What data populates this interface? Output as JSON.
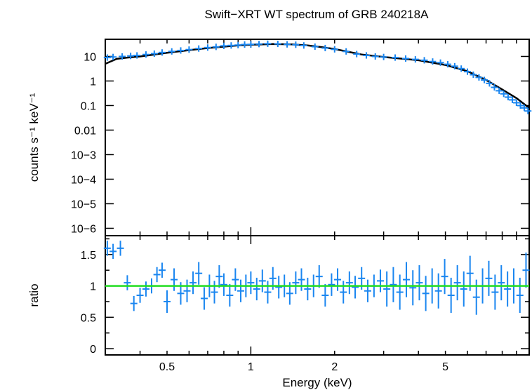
{
  "chart_data": [
    {
      "type": "scatter",
      "panel": "spectrum",
      "title": "Swift−XRT WT spectrum of GRB 240218A",
      "ylabel": "counts s⁻¹ keV⁻¹",
      "xscale": "log",
      "yscale": "log",
      "xlim": [
        0.3,
        10
      ],
      "ylim": [
        5e-07,
        50
      ],
      "x_ticks": [
        0.5,
        1,
        2,
        5
      ],
      "y_ticks": [
        {
          "value": 10,
          "label": "10"
        },
        {
          "value": 1,
          "label": "1"
        },
        {
          "value": 0.1,
          "label": "0.1"
        },
        {
          "value": 0.01,
          "label": "0.01"
        },
        {
          "value": 0.001,
          "label": "10−3"
        },
        {
          "value": 0.0001,
          "label": "10−4"
        },
        {
          "value": 1e-05,
          "label": "10−5"
        },
        {
          "value": 1e-06,
          "label": "10−6"
        }
      ],
      "colors": {
        "data": "#1a86f0",
        "model": "#000000"
      },
      "model": {
        "x": [
          0.3,
          0.33,
          0.36,
          0.4,
          0.45,
          0.5,
          0.6,
          0.7,
          0.8,
          0.9,
          1.0,
          1.2,
          1.4,
          1.6,
          1.8,
          2.0,
          2.5,
          3.0,
          4.0,
          5.0,
          6.0,
          7.0,
          8.0,
          9.0,
          10.0
        ],
        "y": [
          5.0,
          8.0,
          9.0,
          10.0,
          12.0,
          14.0,
          18.0,
          22.0,
          25.0,
          28.0,
          30.0,
          32.0,
          31.0,
          28.0,
          24.0,
          20.0,
          12.0,
          9.5,
          7.0,
          4.5,
          2.5,
          1.1,
          0.45,
          0.2,
          0.08
        ]
      },
      "data": {
        "x": [
          0.305,
          0.32,
          0.345,
          0.37,
          0.39,
          0.42,
          0.45,
          0.48,
          0.52,
          0.56,
          0.6,
          0.65,
          0.7,
          0.75,
          0.8,
          0.85,
          0.9,
          0.95,
          1.0,
          1.07,
          1.15,
          1.25,
          1.35,
          1.45,
          1.55,
          1.7,
          1.85,
          2.0,
          2.2,
          2.4,
          2.6,
          2.8,
          3.0,
          3.3,
          3.6,
          3.9,
          4.2,
          4.5,
          4.8,
          5.1,
          5.4,
          5.7,
          6.0,
          6.3,
          6.6,
          6.9,
          7.2,
          7.5,
          7.8,
          8.1,
          8.4,
          8.7,
          9.0,
          9.3,
          9.6,
          9.9
        ],
        "y": [
          9.0,
          9.5,
          10.0,
          10.5,
          11.0,
          12.0,
          13.0,
          14.5,
          16.0,
          17.5,
          19.0,
          21.0,
          23.0,
          24.5,
          27.0,
          28.0,
          29.0,
          30.5,
          31.0,
          32.0,
          33.0,
          32.5,
          31.0,
          30.0,
          28.0,
          25.0,
          22.0,
          19.5,
          16.0,
          12.5,
          11.0,
          10.0,
          9.5,
          9.0,
          8.2,
          7.6,
          7.0,
          6.2,
          5.6,
          4.8,
          4.0,
          3.2,
          2.4,
          1.8,
          1.4,
          1.1,
          0.8,
          0.55,
          0.4,
          0.3,
          0.22,
          0.17,
          0.13,
          0.1,
          0.08,
          0.06
        ]
      }
    },
    {
      "type": "scatter",
      "panel": "ratio",
      "xlabel": "Energy (keV)",
      "ylabel": "ratio",
      "xscale": "log",
      "xlim": [
        0.3,
        10
      ],
      "ylim": [
        -0.1,
        1.8
      ],
      "x_ticks": [
        {
          "value": 0.5,
          "label": "0.5"
        },
        {
          "value": 1,
          "label": "1"
        },
        {
          "value": 2,
          "label": "2"
        },
        {
          "value": 5,
          "label": "5"
        }
      ],
      "y_ticks": [
        {
          "value": 0,
          "label": "0"
        },
        {
          "value": 0.5,
          "label": "0.5"
        },
        {
          "value": 1,
          "label": "1"
        },
        {
          "value": 1.5,
          "label": "1.5"
        }
      ],
      "reference_line": 1,
      "colors": {
        "data": "#1a86f0",
        "reference": "#22dd22"
      },
      "data": {
        "x": [
          0.305,
          0.32,
          0.34,
          0.36,
          0.38,
          0.4,
          0.42,
          0.44,
          0.46,
          0.48,
          0.5,
          0.53,
          0.56,
          0.59,
          0.62,
          0.65,
          0.68,
          0.71,
          0.74,
          0.77,
          0.8,
          0.84,
          0.88,
          0.92,
          0.96,
          1.0,
          1.05,
          1.1,
          1.15,
          1.2,
          1.26,
          1.32,
          1.38,
          1.45,
          1.52,
          1.6,
          1.68,
          1.76,
          1.85,
          1.95,
          2.05,
          2.15,
          2.26,
          2.37,
          2.5,
          2.63,
          2.77,
          2.92,
          3.08,
          3.25,
          3.43,
          3.62,
          3.82,
          4.03,
          4.25,
          4.48,
          4.72,
          4.97,
          5.24,
          5.52,
          5.82,
          6.13,
          6.46,
          6.8,
          7.16,
          7.54,
          7.94,
          8.36,
          8.8,
          9.26,
          9.74
        ],
        "y": [
          1.6,
          1.55,
          1.6,
          1.05,
          0.72,
          0.85,
          0.95,
          1.0,
          1.18,
          1.25,
          0.75,
          1.1,
          0.88,
          0.92,
          1.05,
          1.2,
          0.8,
          1.0,
          0.9,
          1.15,
          1.02,
          0.85,
          1.1,
          0.92,
          1.0,
          1.05,
          0.95,
          1.08,
          0.9,
          1.12,
          0.98,
          1.0,
          0.88,
          1.05,
          1.1,
          0.95,
          1.0,
          1.15,
          0.85,
          1.02,
          1.1,
          0.9,
          1.05,
          0.98,
          1.12,
          0.92,
          1.0,
          1.08,
          0.95,
          1.02,
          0.9,
          1.1,
          0.97,
          1.05,
          0.88,
          1.0,
          0.92,
          1.15,
          0.85,
          1.05,
          0.95,
          1.2,
          0.82,
          1.0,
          1.12,
          0.9,
          1.05,
          0.95,
          1.0,
          0.85,
          1.25
        ]
      }
    }
  ]
}
